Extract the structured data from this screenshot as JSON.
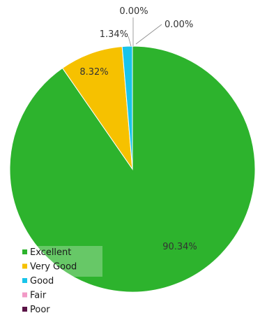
{
  "chart_data": {
    "type": "pie",
    "title": "",
    "slices": [
      {
        "label": "Excellent",
        "value": 90.34,
        "value_label": "90.34%",
        "color": "#2db32d"
      },
      {
        "label": "Very Good",
        "value": 8.32,
        "value_label": "8.32%",
        "color": "#f6c100"
      },
      {
        "label": "Good",
        "value": 1.34,
        "value_label": "1.34%",
        "color": "#19c4ea"
      },
      {
        "label": "Fair",
        "value": 0.0,
        "value_label": "0.00%",
        "color": "#f29ac6"
      },
      {
        "label": "Poor",
        "value": 0.0,
        "value_label": "0.00%",
        "color": "#5a1346"
      }
    ],
    "start_angle_deg": 0,
    "direction": "clockwise",
    "legend": {
      "placement": "bottom-left",
      "items": [
        "Excellent",
        "Very Good",
        "Good",
        "Fair",
        "Poor"
      ]
    }
  }
}
